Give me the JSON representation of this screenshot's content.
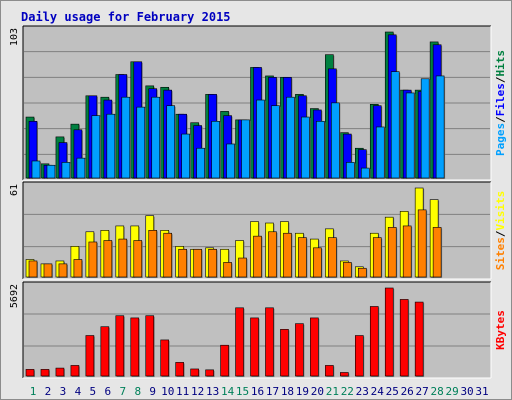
{
  "chart_data": {
    "title": "Daily usage for February 2015",
    "type": "bar",
    "days": [
      "1",
      "2",
      "3",
      "4",
      "5",
      "6",
      "7",
      "8",
      "9",
      "10",
      "11",
      "12",
      "13",
      "14",
      "15",
      "16",
      "17",
      "18",
      "19",
      "20",
      "21",
      "22",
      "23",
      "24",
      "25",
      "26",
      "27",
      "28",
      "29",
      "30",
      "31"
    ],
    "weekend_days": [
      1,
      7,
      8,
      14,
      15,
      21,
      22,
      28,
      29
    ],
    "max_labels": {
      "hits": "103",
      "visits": "61",
      "kbytes": "5692"
    },
    "panels": [
      {
        "name": "usage",
        "labels": [
          {
            "text": "Pages",
            "color": "#00a0ff"
          },
          {
            "text": "/",
            "color": "#000000"
          },
          {
            "text": "Files",
            "color": "#0000ff"
          },
          {
            "text": "/",
            "color": "#000000"
          },
          {
            "text": "Hits",
            "color": "#008040"
          }
        ],
        "ymax": 103,
        "series": [
          {
            "name": "Hits",
            "color": "#008040",
            "values": [
              43,
              10,
              29,
              38,
              58,
              57,
              73,
              82,
              65,
              64,
              45,
              39,
              59,
              47,
              41,
              78,
              72,
              71,
              59,
              49,
              87,
              32,
              21,
              52,
              103,
              62,
              62,
              96,
              0,
              0,
              0
            ]
          },
          {
            "name": "Files",
            "color": "#0000ff",
            "values": [
              40,
              9,
              25,
              34,
              58,
              55,
              73,
              82,
              63,
              62,
              45,
              37,
              59,
              44,
              41,
              78,
              71,
              71,
              58,
              48,
              77,
              31,
              20,
              51,
              101,
              62,
              61,
              94,
              0,
              0,
              0
            ]
          },
          {
            "name": "Pages",
            "color": "#00a0ff",
            "values": [
              12,
              9,
              11,
              14,
              44,
              45,
              57,
              50,
              57,
              51,
              31,
              21,
              40,
              24,
              41,
              55,
              51,
              57,
              43,
              40,
              53,
              11,
              7,
              36,
              75,
              60,
              70,
              72,
              0,
              0,
              0
            ]
          }
        ]
      },
      {
        "name": "visits",
        "labels": [
          {
            "text": "Sites",
            "color": "#ff8000"
          },
          {
            "text": "/",
            "color": "#000000"
          },
          {
            "text": "Visits",
            "color": "#ffff00"
          }
        ],
        "ymax": 61,
        "series": [
          {
            "name": "Visits",
            "color": "#ffff00",
            "values": [
              12,
              9,
              11,
              21,
              31,
              32,
              35,
              35,
              42,
              32,
              21,
              19,
              20,
              19,
              25,
              38,
              37,
              38,
              30,
              26,
              33,
              11,
              7,
              30,
              41,
              45,
              61,
              53,
              0,
              0,
              0
            ]
          },
          {
            "name": "Sites",
            "color": "#ff8000",
            "values": [
              11,
              9,
              9,
              12,
              24,
              25,
              26,
              25,
              32,
              30,
              19,
              19,
              19,
              10,
              13,
              28,
              31,
              30,
              27,
              20,
              27,
              10,
              6,
              27,
              34,
              35,
              46,
              34,
              0,
              0,
              0
            ]
          }
        ]
      },
      {
        "name": "kbytes",
        "labels": [
          {
            "text": "KBytes",
            "color": "#ff0000"
          }
        ],
        "ymax": 5692,
        "series": [
          {
            "name": "KBytes",
            "color": "#ff0000",
            "values": [
              427,
              427,
              512,
              683,
              2618,
              3188,
              3899,
              3757,
              3899,
              2333,
              880,
              455,
              398,
              1991,
              4411,
              3757,
              4411,
              3017,
              3387,
              3757,
              683,
              228,
              2618,
              4497,
              5692,
              4952,
              4782,
              0,
              0,
              0,
              0
            ]
          }
        ]
      }
    ],
    "grid": true
  }
}
